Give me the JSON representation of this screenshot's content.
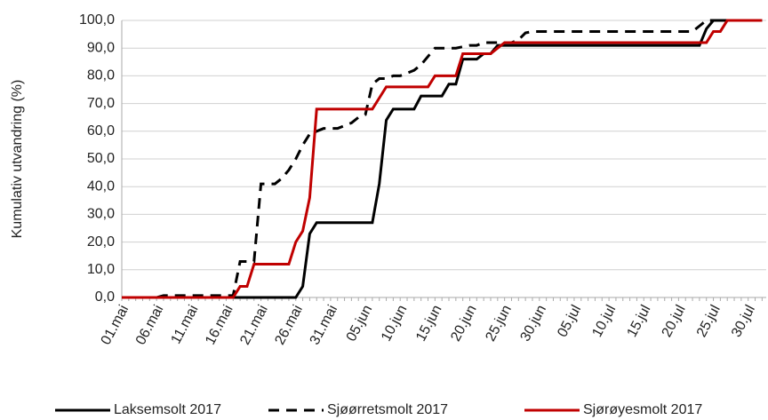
{
  "chart_data": {
    "type": "line",
    "y_label": "Kumulativ utvandring (%)",
    "categories": [
      "01.mai",
      null,
      null,
      null,
      null,
      "06.mai",
      null,
      null,
      null,
      null,
      "11.mai",
      null,
      null,
      null,
      null,
      "16.mai",
      null,
      null,
      null,
      null,
      "21.mai",
      null,
      null,
      null,
      null,
      "26.mai",
      null,
      null,
      null,
      null,
      "31.mai",
      null,
      null,
      null,
      null,
      "05.jun",
      null,
      null,
      null,
      null,
      "10.jun",
      null,
      null,
      null,
      null,
      "15.jun",
      null,
      null,
      null,
      null,
      "20.jun",
      null,
      null,
      null,
      null,
      "25.jun",
      null,
      null,
      null,
      null,
      "30.jun",
      null,
      null,
      null,
      null,
      "05.jul",
      null,
      null,
      null,
      null,
      "10.jul",
      null,
      null,
      null,
      null,
      "15.jul",
      null,
      null,
      null,
      null,
      "20.jul",
      null,
      null,
      null,
      null,
      "25.jul",
      null,
      null,
      null,
      null,
      "30.jul",
      null,
      null
    ],
    "ylim": [
      0,
      100
    ],
    "yticks": [
      {
        "value": 0,
        "label": "0,0"
      },
      {
        "value": 10,
        "label": "10,0"
      },
      {
        "value": 20,
        "label": "20,0"
      },
      {
        "value": 30,
        "label": "30,0"
      },
      {
        "value": 40,
        "label": "40,0"
      },
      {
        "value": 50,
        "label": "50,0"
      },
      {
        "value": 60,
        "label": "60,0"
      },
      {
        "value": 70,
        "label": "70,0"
      },
      {
        "value": 80,
        "label": "80,0"
      },
      {
        "value": 90,
        "label": "90,0"
      },
      {
        "value": 100,
        "label": "100,0"
      }
    ],
    "grid": true,
    "series": [
      {
        "name": "Laksemsolt 2017",
        "color": "#000000",
        "dash": false,
        "values": [
          0,
          0,
          0,
          0,
          0,
          0,
          0,
          0,
          0,
          0,
          0,
          0,
          0,
          0,
          0,
          0,
          0,
          0,
          0,
          0,
          0,
          0,
          0,
          0,
          0,
          0,
          4,
          23,
          27,
          27,
          27,
          27,
          27,
          27,
          27,
          27,
          27,
          41,
          64,
          68,
          68,
          68,
          68,
          72.7,
          72.7,
          72.7,
          72.7,
          77,
          77,
          86,
          86,
          86,
          88,
          88,
          91,
          91,
          91,
          91,
          91,
          91,
          91,
          91,
          91,
          91,
          91,
          91,
          91,
          91,
          91,
          91,
          91,
          91,
          91,
          91,
          91,
          91,
          91,
          91,
          91,
          91,
          91,
          91,
          91,
          91,
          97,
          100,
          100,
          100,
          100,
          100,
          100,
          100,
          100
        ]
      },
      {
        "name": "Sjøørretsmolt 2017",
        "color": "#000000",
        "dash": true,
        "values": [
          0,
          0,
          0,
          0,
          0,
          0,
          0.7,
          0.7,
          0.7,
          0.7,
          0.7,
          0.7,
          0.7,
          0.7,
          0.7,
          0.7,
          0.7,
          13,
          13,
          13,
          41,
          41,
          41,
          43,
          46,
          50,
          55,
          59,
          60,
          61,
          61,
          61,
          62,
          63,
          65,
          66,
          77,
          79,
          79,
          80,
          80,
          81,
          82,
          84,
          87,
          90,
          90,
          90,
          90,
          90.5,
          91,
          91,
          92,
          92,
          92,
          92,
          92,
          93,
          95.5,
          96,
          96,
          96,
          96,
          96,
          96,
          96,
          96,
          96,
          96,
          96,
          96,
          96,
          96,
          96,
          96,
          96,
          96,
          96,
          96,
          96,
          96,
          96,
          96,
          98,
          100,
          100,
          100,
          100,
          100,
          100,
          100,
          100,
          100
        ]
      },
      {
        "name": "Sjørøyesmolt 2017",
        "color": "#c00000",
        "dash": false,
        "values": [
          0,
          0,
          0,
          0,
          0,
          0,
          0,
          0,
          0,
          0,
          0,
          0,
          0,
          0,
          0,
          0,
          0,
          4,
          4,
          12,
          12,
          12,
          12,
          12,
          12,
          20,
          24,
          36,
          68,
          68,
          68,
          68,
          68,
          68,
          68,
          68,
          68,
          72,
          76,
          76,
          76,
          76,
          76,
          76,
          76,
          80,
          80,
          80,
          80,
          88,
          88,
          88,
          88,
          88,
          90,
          92,
          92,
          92,
          92,
          92,
          92,
          92,
          92,
          92,
          92,
          92,
          92,
          92,
          92,
          92,
          92,
          92,
          92,
          92,
          92,
          92,
          92,
          92,
          92,
          92,
          92,
          92,
          92,
          92,
          92,
          96,
          96,
          100,
          100,
          100,
          100,
          100,
          100
        ]
      }
    ]
  }
}
